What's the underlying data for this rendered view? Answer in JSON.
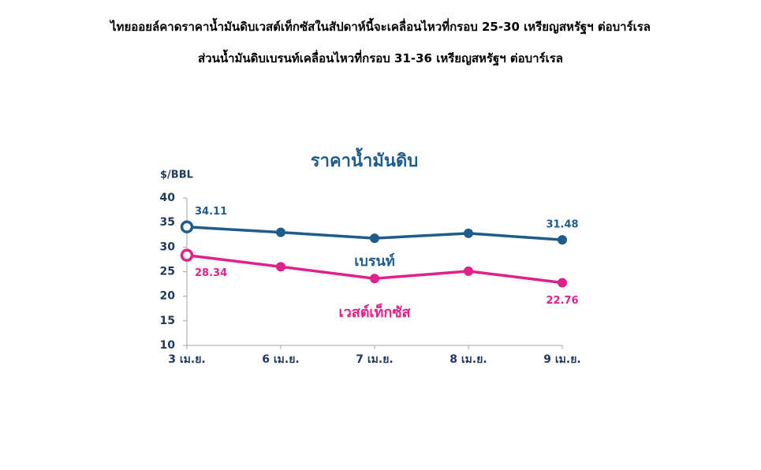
{
  "header": {
    "lines": [
      "ไทยออยล์คาดราคาน้ำมันดิบเวสต์เท็กซัสในสัปดาห์นี้จะเคลื่อนไหวที่กรอบ 25-30 เหรียญสหรัฐฯ ต่อบาร์เรล",
      "ส่วนน้ำมันดิบเบรนท์เคลื่อนไหวที่กรอบ 31-36 เหรียญสหรัฐฯ ต่อบาร์เรล"
    ]
  },
  "chart_data": {
    "type": "line",
    "title": "ราคาน้ำมันดิบ",
    "y_label": "$/BBL",
    "categories": [
      "3 เม.ย.",
      "6 เม.ย.",
      "7 เม.ย.",
      "8 เม.ย.",
      "9 เม.ย."
    ],
    "series": [
      {
        "name": "เบรนท์",
        "color": "#1f5c8b",
        "values": [
          34.11,
          33.0,
          31.8,
          32.8,
          31.48
        ]
      },
      {
        "name": "เวสต์เท็กซัส",
        "color": "#e0218a",
        "values": [
          28.34,
          26.0,
          23.6,
          25.1,
          22.76
        ]
      }
    ],
    "data_labels_at": [
      0,
      4
    ],
    "ylim": [
      10,
      40
    ],
    "yticks": [
      10,
      15,
      20,
      25,
      30,
      35,
      40
    ]
  }
}
